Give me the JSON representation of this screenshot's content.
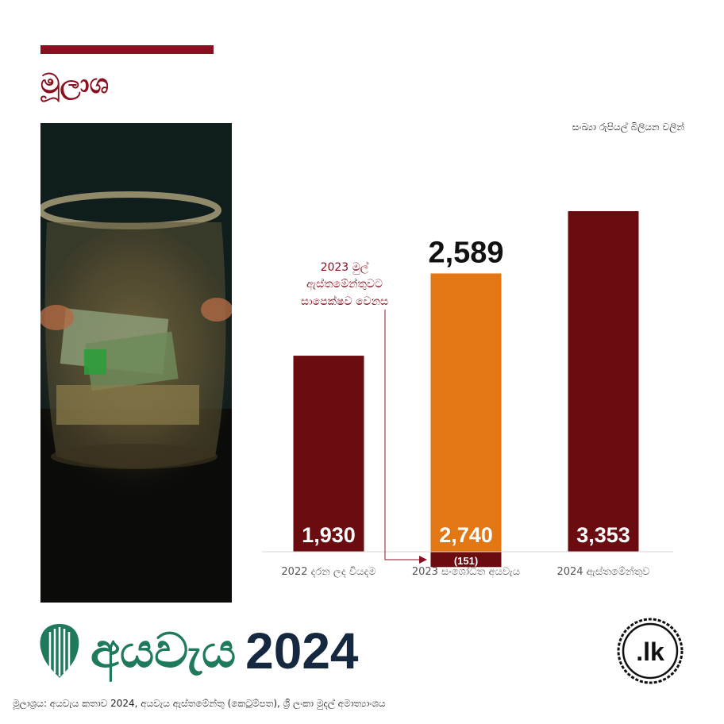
{
  "header": {
    "title": "මූලාශ"
  },
  "unit_note": "සංඛ්‍යා රුපියල් බිලියන වලින්",
  "callout": {
    "lines": [
      "2023 මුල්",
      "ඇස්තමේන්තුවට",
      "සාපෙක්ෂව වෙනස"
    ]
  },
  "chart_data": {
    "type": "bar",
    "categories": [
      "2022 දරන ලද වියදම",
      "2023 සංශෝධිත අයවැය",
      "2024 ඇස්තමේන්තුව"
    ],
    "values": [
      1930,
      2740,
      3353
    ],
    "value_labels": [
      "1,930",
      "2,740",
      "3,353"
    ],
    "adjustment": {
      "category_index": 1,
      "value": -151,
      "label": "(151)"
    },
    "total": {
      "category_index": 1,
      "value": 2589,
      "label": "2,589"
    },
    "colors": [
      "#6b0d10",
      "#e37713",
      "#6b0d10"
    ],
    "ylim": [
      -151,
      3353
    ]
  },
  "brand": {
    "word": "අයවැය",
    "year": "2024",
    "badge": ".lk"
  },
  "source": "මූලාශ්‍රය: අයවැය කතාව 2024, අයවැය ඇස්තමේන්තු (කෙටුම්පත), ශ්‍රී ලංකා මුදල් අමාත්‍යාංශය",
  "style": {
    "accent": "#8a1020",
    "bar_dark": "#6b0d10",
    "bar_orange": "#e37713",
    "brand_green": "#1f7a5c",
    "brand_navy": "#15283f"
  }
}
